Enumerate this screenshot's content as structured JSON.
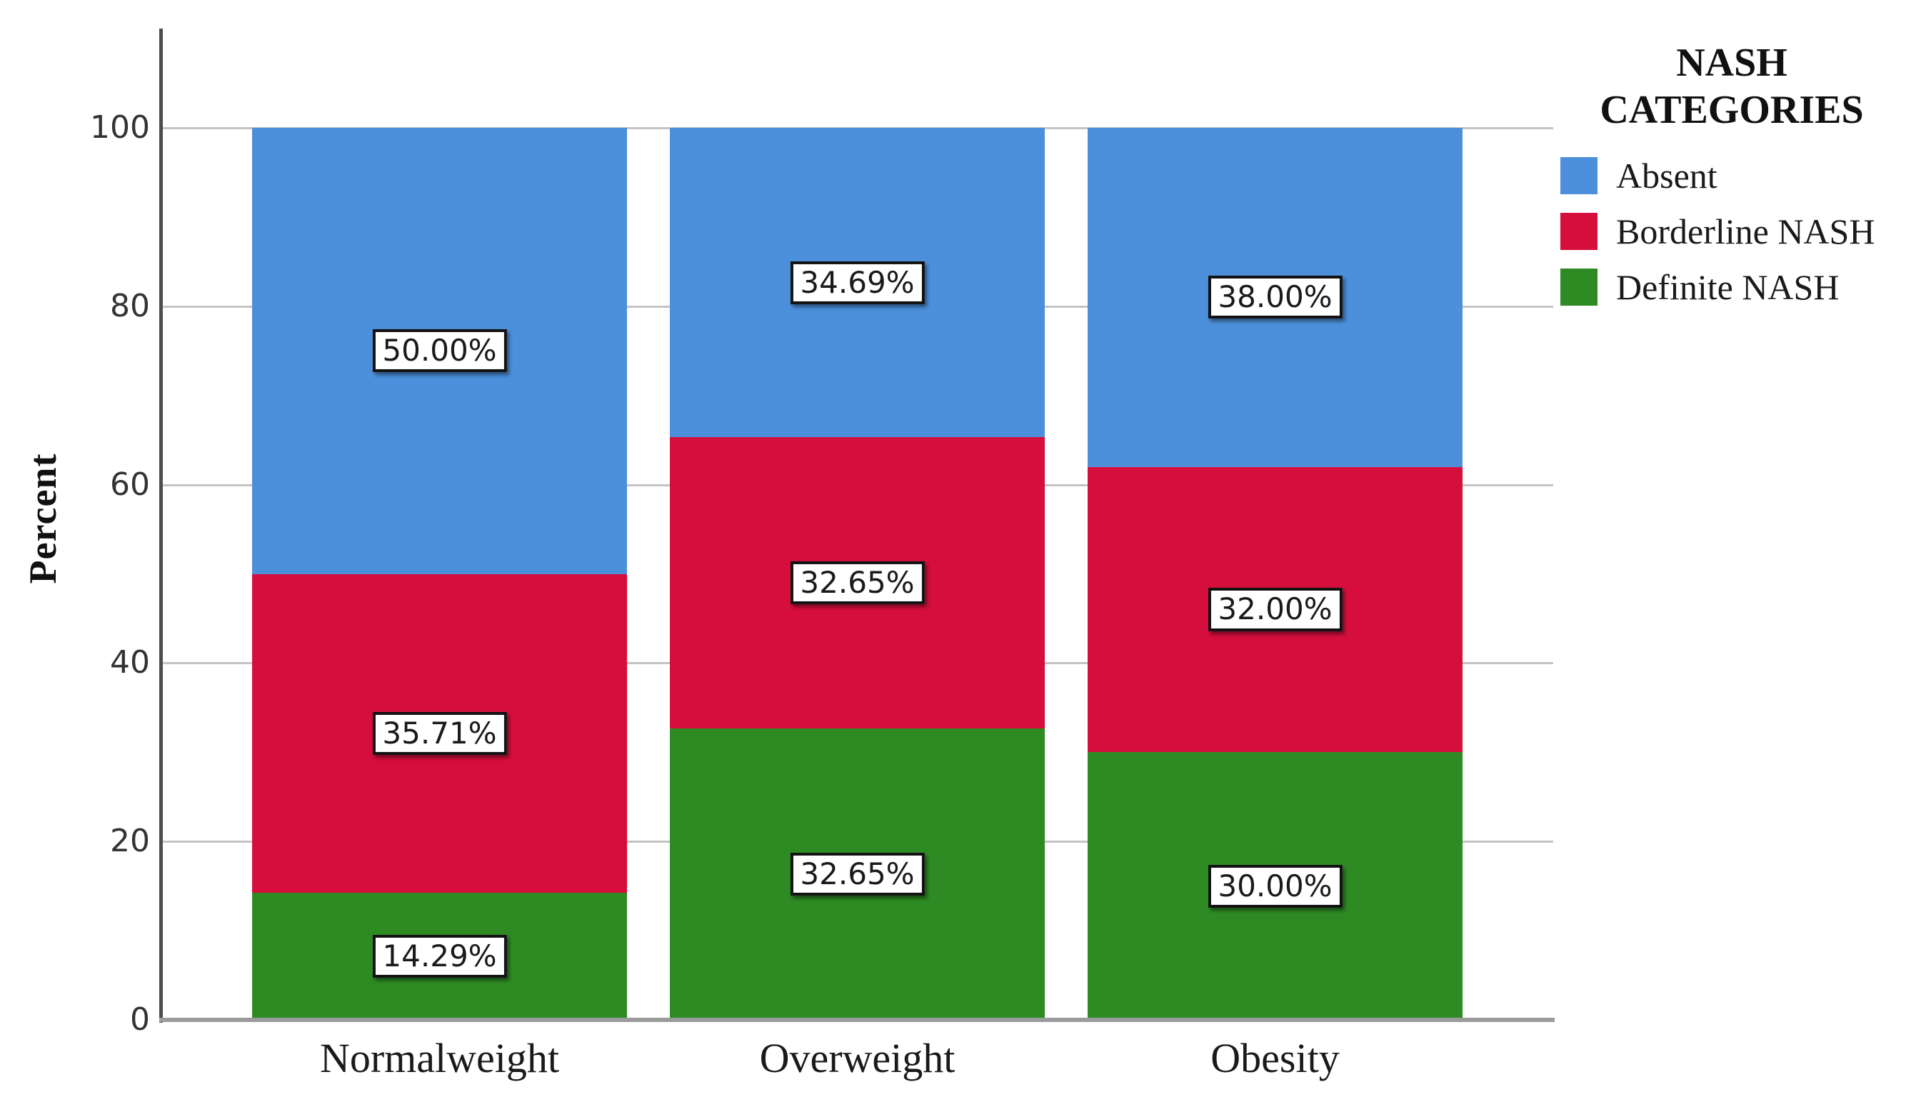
{
  "chart_data": {
    "type": "bar",
    "stacked": true,
    "categories": [
      "Normalweight",
      "Overweight",
      "Obesity"
    ],
    "series": [
      {
        "name": "Absent",
        "color": "#4C90DB",
        "values": [
          50.0,
          34.69,
          38.0
        ],
        "labels": [
          "50.00%",
          "34.69%",
          "38.00%"
        ]
      },
      {
        "name": "Borderline NASH",
        "color": "#D60E3C",
        "values": [
          35.71,
          32.65,
          32.0
        ],
        "labels": [
          "35.71%",
          "32.65%",
          "32.00%"
        ]
      },
      {
        "name": "Definite NASH",
        "color": "#2E8B24",
        "values": [
          14.29,
          32.65,
          30.0
        ],
        "labels": [
          "14.29%",
          "32.65%",
          "30.00%"
        ]
      }
    ],
    "ylabel": "Percent",
    "xlabel": "",
    "ylim": [
      0,
      100
    ],
    "yticks": [
      0,
      20,
      40,
      60,
      80,
      100
    ],
    "grid": true,
    "legend_title": "NASH CATEGORIES",
    "legend_position": "right"
  },
  "colors": {
    "background": "#ffffff",
    "gridline": "#c4c4c4",
    "axis_y": "#4d4d4d",
    "axis_x": "#9b9b9b",
    "label_box_border": "#111111",
    "text": "#1a1a1a"
  }
}
